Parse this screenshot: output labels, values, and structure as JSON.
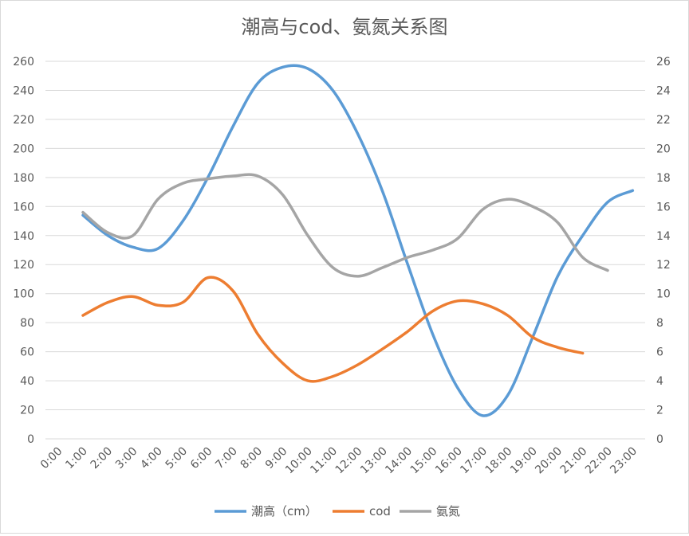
{
  "chart_data": {
    "type": "line",
    "title": "潮高与cod、氨氮关系图",
    "categories": [
      "0:00",
      "1:00",
      "2:00",
      "3:00",
      "4:00",
      "5:00",
      "6:00",
      "7:00",
      "8:00",
      "9:00",
      "10:00",
      "11:00",
      "12:00",
      "13:00",
      "14:00",
      "15:00",
      "16:00",
      "17:00",
      "18:00",
      "19:00",
      "20:00",
      "21:00",
      "22:00",
      "23:00"
    ],
    "y_left": {
      "min": 0,
      "max": 260,
      "step": 20
    },
    "y_right": {
      "min": 0,
      "max": 26,
      "step": 2
    },
    "grid": true,
    "legend_position": "bottom",
    "series": [
      {
        "name": "潮高（cm）",
        "axis": "left",
        "color": "#5b9bd5",
        "values": [
          null,
          154,
          140,
          132,
          131,
          150,
          180,
          215,
          245,
          256,
          255,
          240,
          210,
          170,
          120,
          72,
          35,
          16,
          30,
          70,
          112,
          140,
          163,
          171
        ]
      },
      {
        "name": "cod",
        "axis": "right",
        "color": "#ed7d31",
        "values": [
          null,
          8.5,
          9.4,
          9.8,
          9.2,
          9.4,
          11.1,
          10.2,
          7.2,
          5.2,
          4.0,
          4.3,
          5.1,
          6.2,
          7.4,
          8.8,
          9.5,
          9.3,
          8.5,
          7.0,
          6.3,
          5.9,
          null,
          null
        ]
      },
      {
        "name": "氨氮",
        "axis": "right",
        "color": "#a5a5a5",
        "values": [
          null,
          15.6,
          14.2,
          14.0,
          16.5,
          17.6,
          17.9,
          18.1,
          18.1,
          16.8,
          14.0,
          11.8,
          11.2,
          11.8,
          12.5,
          13.0,
          13.8,
          15.8,
          16.5,
          16.0,
          14.9,
          12.5,
          11.6,
          null
        ]
      }
    ]
  }
}
